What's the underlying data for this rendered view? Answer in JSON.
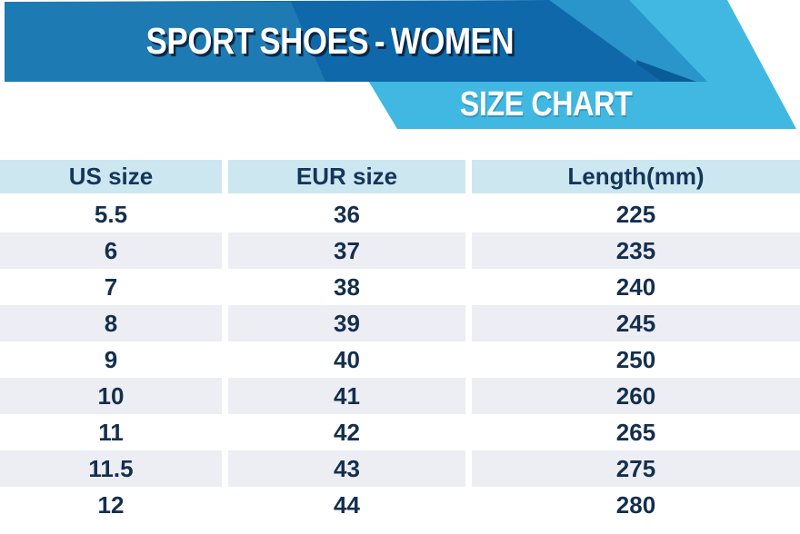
{
  "header": {
    "title": "SPORT SHOES - WOMEN",
    "ribbon_label": "SIZE CHART",
    "colors": {
      "band_dark": "#0e68a9",
      "band_light": "#1e7ab2",
      "band_medium": "#2995cb",
      "band_deep": "#0a5c97",
      "sky_blue": "#41b8e1",
      "title_text": "#ffffff",
      "title_shadow": "#0a2743"
    }
  },
  "chart_data": {
    "type": "table",
    "title": "SIZE CHART",
    "subtitle": "SPORT SHOES - WOMEN",
    "columns": [
      "US size",
      "EUR size",
      "Length(mm)"
    ],
    "rows": [
      [
        "5.5",
        "36",
        "225"
      ],
      [
        "6",
        "37",
        "235"
      ],
      [
        "7",
        "38",
        "240"
      ],
      [
        "8",
        "39",
        "245"
      ],
      [
        "9",
        "40",
        "250"
      ],
      [
        "10",
        "41",
        "260"
      ],
      [
        "11",
        "42",
        "265"
      ],
      [
        "11.5",
        "43",
        "275"
      ],
      [
        "12",
        "44",
        "280"
      ]
    ],
    "layout": {
      "header_bg": "#cde7f1",
      "stripe_bg": "#edeef3",
      "text_color": "#142f4e",
      "striped_rows": [
        "6",
        "8",
        "10",
        "11.5"
      ]
    }
  }
}
